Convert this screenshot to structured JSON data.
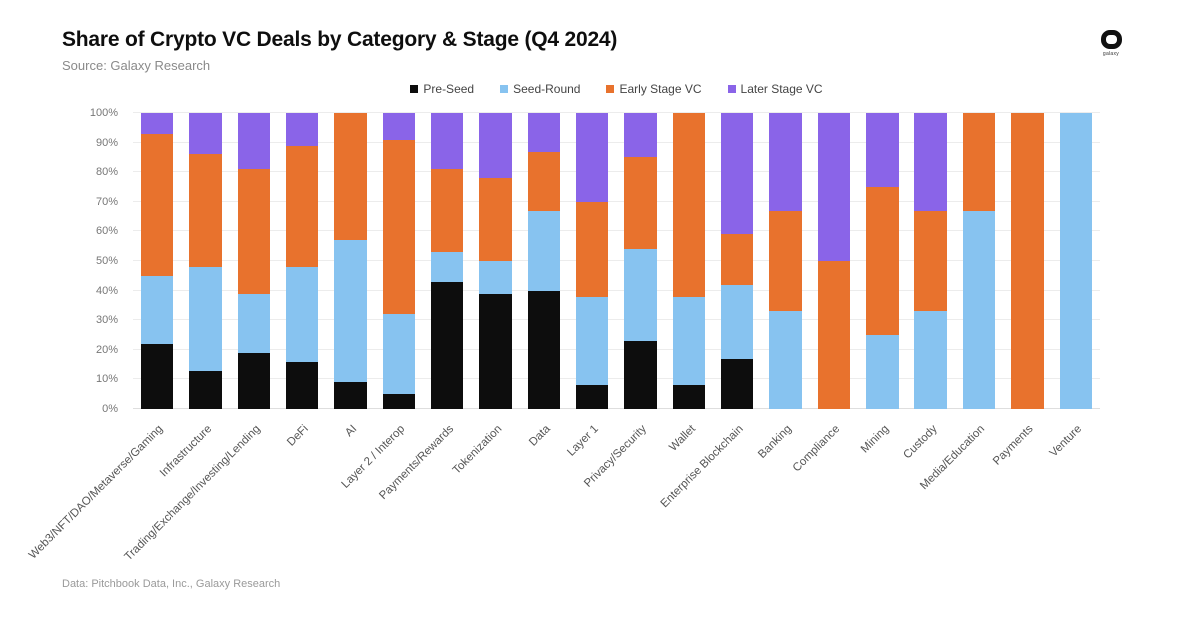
{
  "header": {
    "title": "Share of Crypto VC Deals by Category & Stage (Q4 2024)",
    "source": "Source: Galaxy Research"
  },
  "logo": {
    "word": "galaxy"
  },
  "footer": {
    "credit": "Data: Pitchbook Data, Inc., Galaxy Research"
  },
  "colors": {
    "pre_seed": "#0d0d0d",
    "seed_round": "#87c3f0",
    "early_stage": "#e8722d",
    "later_stage": "#8a64e8",
    "gridline": "#ececec"
  },
  "chart_data": {
    "type": "bar",
    "subtype": "stacked-100-percent",
    "title": "Share of Crypto VC Deals by Category & Stage (Q4 2024)",
    "xlabel": "",
    "ylabel": "",
    "ylim": [
      0,
      100
    ],
    "grid": true,
    "legend_position": "top",
    "yticks": [
      "0%",
      "10%",
      "20%",
      "30%",
      "40%",
      "50%",
      "60%",
      "70%",
      "80%",
      "90%",
      "100%"
    ],
    "categories": [
      "Web3/NFT/DAO/Metaverse/Gaming",
      "Infrastructure",
      "Trading/Exchange/Investing/Lending",
      "DeFi",
      "AI",
      "Layer 2 / Interop",
      "Payments/Rewards",
      "Tokenization",
      "Data",
      "Layer 1",
      "Privacy/Security",
      "Wallet",
      "Enterprise Blockchain",
      "Banking",
      "Compliance",
      "Mining",
      "Custody",
      "Media/Education",
      "Payments",
      "Venture"
    ],
    "series": [
      {
        "name": "Pre-Seed",
        "color": "#0d0d0d",
        "values": [
          22,
          13,
          19,
          16,
          9,
          5,
          43,
          39,
          40,
          8,
          23,
          8,
          17,
          0,
          0,
          0,
          0,
          0,
          0,
          0
        ]
      },
      {
        "name": "Seed-Round",
        "color": "#87c3f0",
        "values": [
          23,
          35,
          20,
          32,
          48,
          27,
          10,
          11,
          27,
          30,
          31,
          30,
          25,
          33,
          0,
          25,
          33,
          67,
          0,
          100
        ]
      },
      {
        "name": "Early Stage VC",
        "color": "#e8722d",
        "values": [
          48,
          38,
          42,
          41,
          43,
          59,
          28,
          28,
          20,
          32,
          31,
          62,
          17,
          34,
          50,
          50,
          34,
          33,
          100,
          0
        ]
      },
      {
        "name": "Later Stage VC",
        "color": "#8a64e8",
        "values": [
          7,
          14,
          19,
          11,
          0,
          9,
          19,
          22,
          13,
          30,
          15,
          0,
          41,
          33,
          50,
          25,
          33,
          0,
          0,
          0
        ]
      }
    ]
  }
}
